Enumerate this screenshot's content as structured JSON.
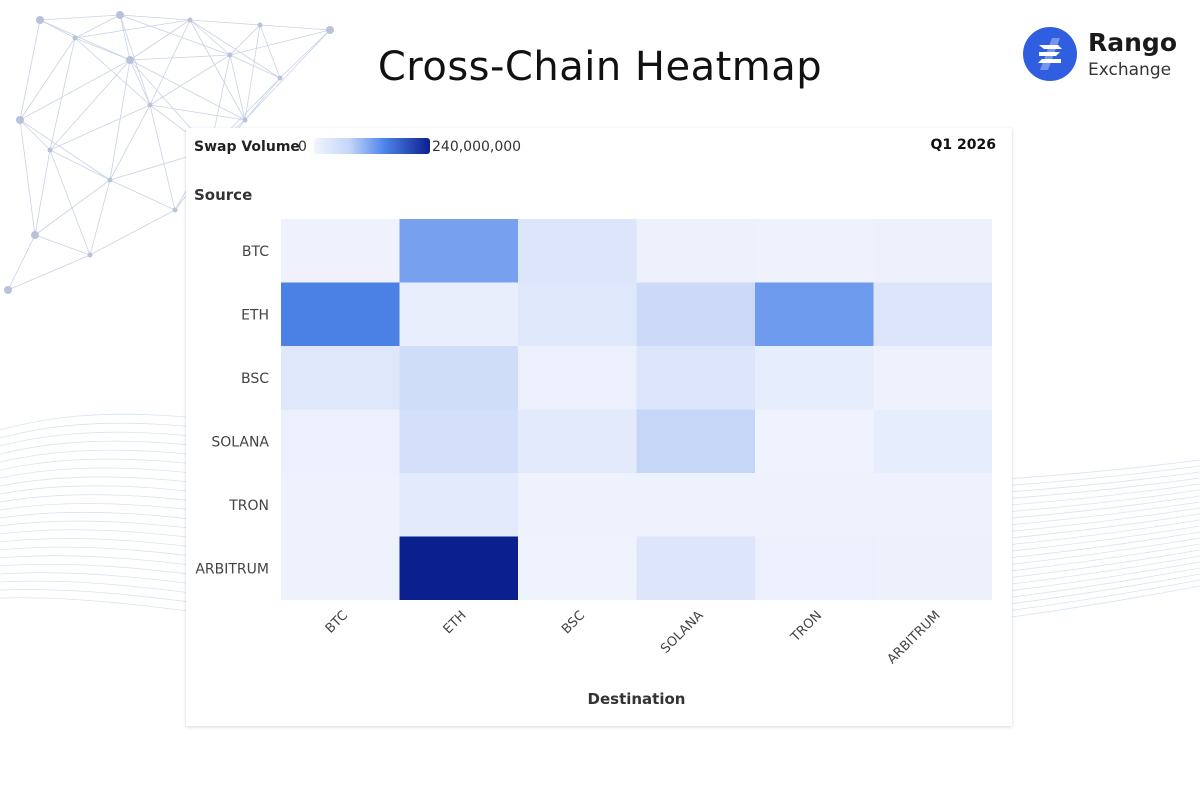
{
  "page": {
    "title": "Cross-Chain Heatmap",
    "brand_name": "Rango",
    "brand_sub": "Exchange",
    "brand_color": "#2f5fe0"
  },
  "legend": {
    "label": "Swap Volume",
    "min_label": "0",
    "max_label": "240,000,000",
    "color_low": "#f1f4fd",
    "color_high": "#0b1f8f"
  },
  "period": "Q1 2026",
  "chart_data": {
    "type": "heatmap",
    "title": "Cross-Chain Heatmap",
    "xlabel": "Destination",
    "ylabel": "Source",
    "x_categories": [
      "BTC",
      "ETH",
      "BSC",
      "SOLANA",
      "TRON",
      "ARBITRUM"
    ],
    "y_categories": [
      "BTC",
      "ETH",
      "BSC",
      "SOLANA",
      "TRON",
      "ARBITRUM"
    ],
    "value_range": [
      0,
      240000000
    ],
    "values": [
      [
        4000000,
        120000000,
        35000000,
        8000000,
        4000000,
        8000000
      ],
      [
        150000000,
        15000000,
        30000000,
        62000000,
        125000000,
        35000000
      ],
      [
        30000000,
        55000000,
        10000000,
        35000000,
        18000000,
        6000000
      ],
      [
        10000000,
        48000000,
        25000000,
        72000000,
        3000000,
        18000000
      ],
      [
        5000000,
        25000000,
        5000000,
        6000000,
        5000000,
        5000000
      ],
      [
        5000000,
        240000000,
        3000000,
        35000000,
        10000000,
        7000000
      ]
    ]
  }
}
